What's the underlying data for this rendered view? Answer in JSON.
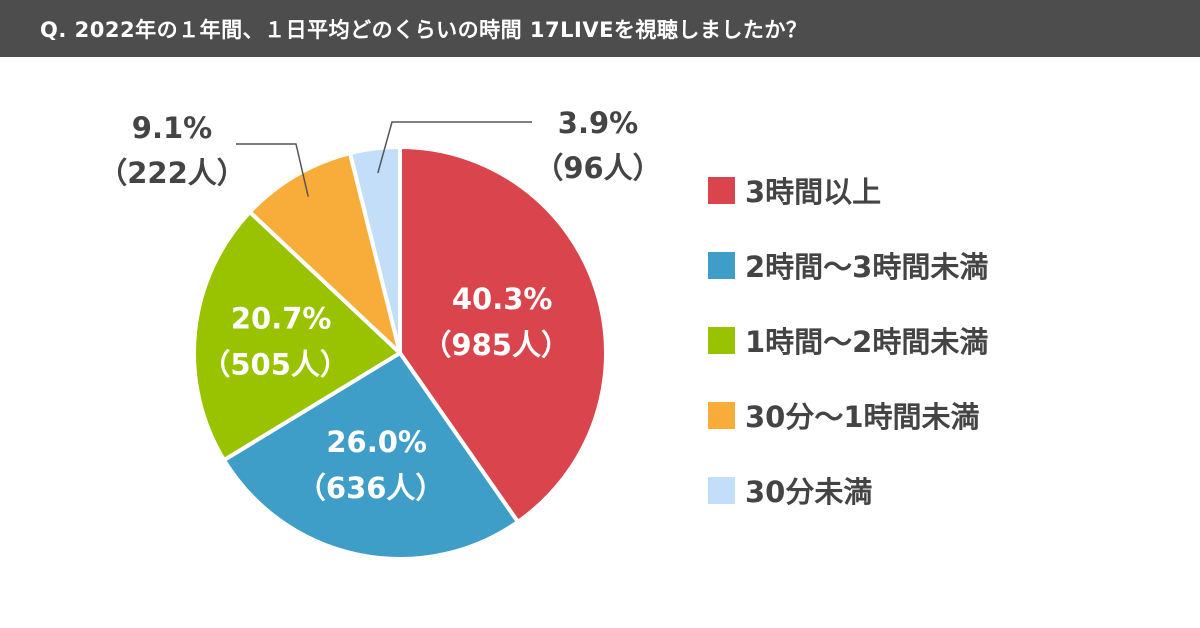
{
  "header": {
    "title": "Q. 2022年の１年間、１日平均どのくらいの時間 17LIVEを視聴しましたか？"
  },
  "chart_data": {
    "type": "pie",
    "title": "Q. 2022年の１年間、１日平均どのくらいの時間 17LIVEを視聴しましたか？",
    "slices": [
      {
        "label": "3時間以上",
        "percent": 40.3,
        "count": 985,
        "percent_text": "40.3%",
        "count_text": "（985人）",
        "color": "#d9444d"
      },
      {
        "label": "2時間〜3時間未満",
        "percent": 26.0,
        "count": 636,
        "percent_text": "26.0%",
        "count_text": "（636人）",
        "color": "#3f9ec8"
      },
      {
        "label": "1時間〜2時間未満",
        "percent": 20.7,
        "count": 505,
        "percent_text": "20.7%",
        "count_text": "（505人）",
        "color": "#99c200"
      },
      {
        "label": "30分〜1時間未満",
        "percent": 9.1,
        "count": 222,
        "percent_text": "9.1%",
        "count_text": "（222人）",
        "color": "#f8ad3b"
      },
      {
        "label": "30分未満",
        "percent": 3.9,
        "count": 96,
        "percent_text": "3.9%",
        "count_text": "（96人）",
        "color": "#c2def8"
      }
    ],
    "legend_position": "right",
    "start": "top",
    "direction": "clockwise"
  }
}
